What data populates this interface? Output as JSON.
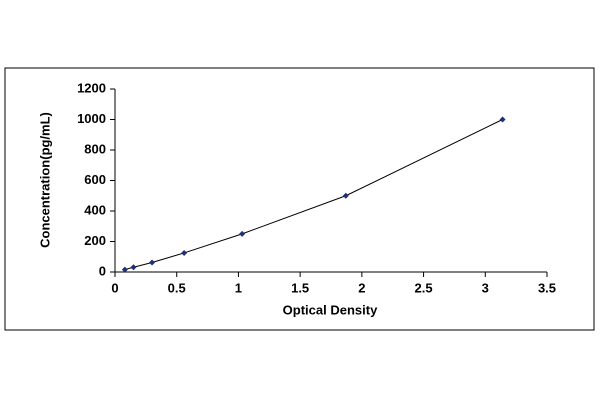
{
  "chart_data": {
    "type": "scatter",
    "x_label": "Optical Density",
    "y_label": "Concentration(pg/mL)",
    "x": [
      0.08,
      0.15,
      0.3,
      0.56,
      1.03,
      1.87,
      3.14
    ],
    "series": [
      {
        "color": "#1f2f7a",
        "values": [
          15.6,
          31.25,
          62.5,
          125,
          250,
          500,
          1000
        ]
      }
    ],
    "line_color": "#000000",
    "xlim": [
      0,
      3.5
    ],
    "xticks": [
      0,
      0.5,
      1,
      1.5,
      2,
      2.5,
      3,
      3.5
    ],
    "ylim": [
      0,
      1200
    ],
    "yticks": [
      0,
      200,
      400,
      600,
      800,
      1000,
      1200
    ],
    "grid": false
  }
}
